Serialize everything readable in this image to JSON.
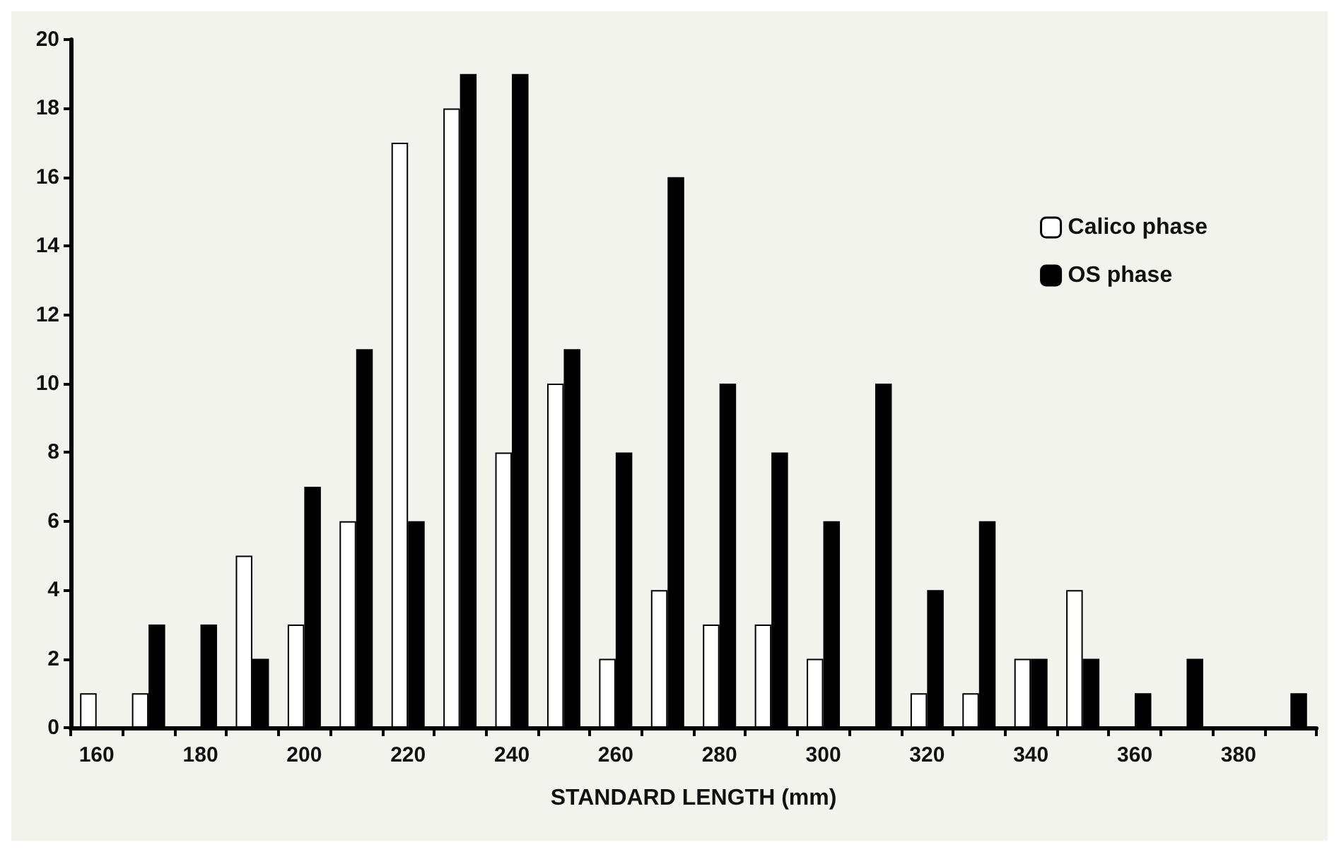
{
  "chart_data": {
    "type": "bar",
    "xlabel": "STANDARD LENGTH (mm)",
    "categories": [
      "160",
      null,
      "180",
      null,
      "200",
      null,
      "220",
      null,
      "240",
      null,
      "260",
      null,
      "280",
      null,
      "300",
      null,
      "320",
      null,
      "340",
      null,
      "360",
      null,
      "380",
      null
    ],
    "series": [
      {
        "name": "Calico phase",
        "color": "#ffffff",
        "values": [
          1,
          1,
          0,
          5,
          3,
          6,
          17,
          18,
          8,
          10,
          2,
          4,
          3,
          3,
          2,
          0,
          1,
          1,
          2,
          4,
          0,
          0,
          0,
          0
        ]
      },
      {
        "name": "OS phase",
        "color": "#000000",
        "values": [
          0,
          3,
          3,
          2,
          7,
          11,
          6,
          19,
          19,
          11,
          8,
          16,
          10,
          8,
          6,
          10,
          4,
          6,
          2,
          2,
          1,
          2,
          0,
          1
        ]
      }
    ],
    "ylim": [
      0,
      20
    ],
    "yticks": [
      0,
      2,
      4,
      6,
      8,
      10,
      12,
      14,
      16,
      18,
      20
    ],
    "grid": false,
    "legend": "top right"
  }
}
